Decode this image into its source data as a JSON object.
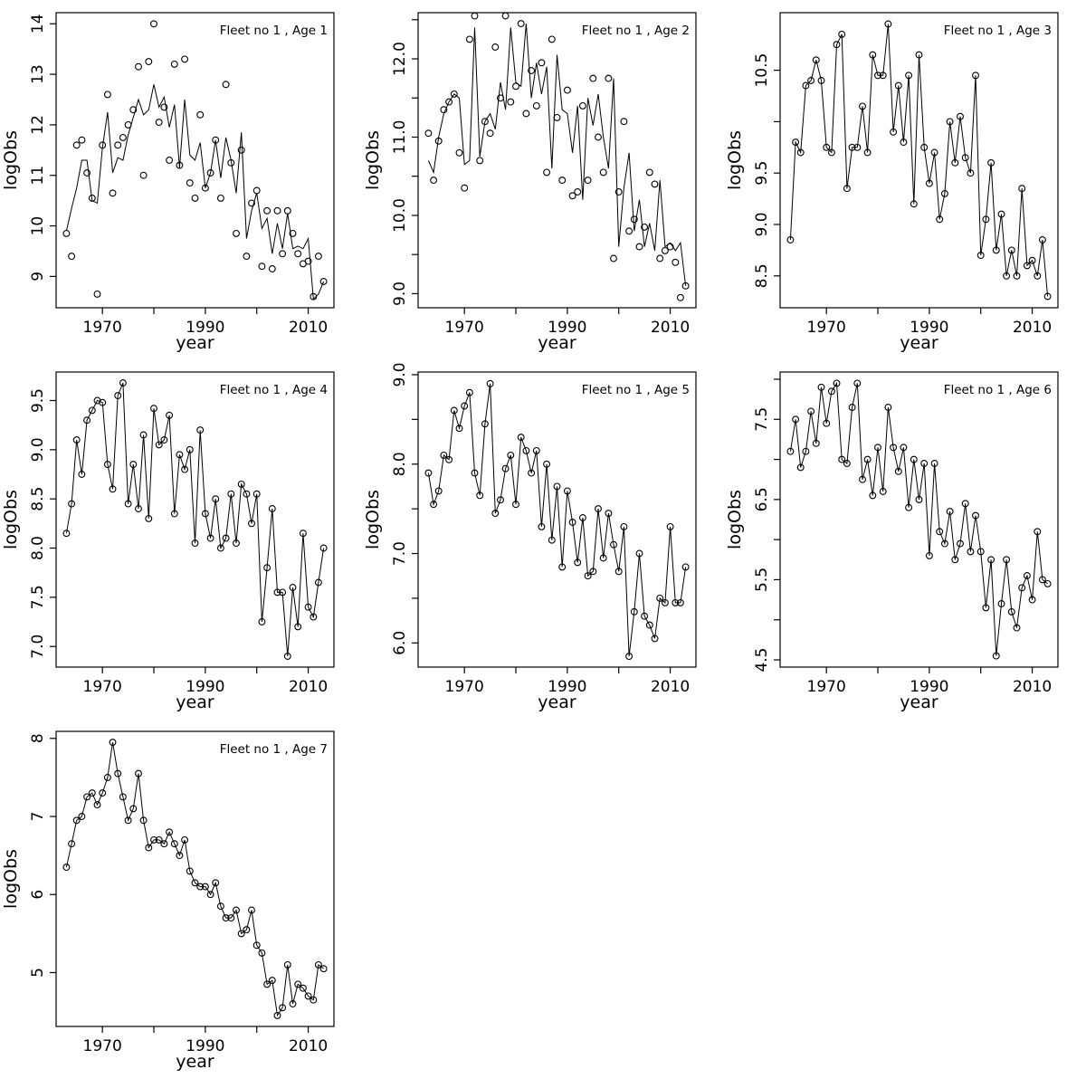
{
  "page": {
    "background": "#ffffff",
    "foreground": "#000000"
  },
  "chart_data": [
    {
      "type": "line",
      "title": "Fleet no 1 , Age 1",
      "xlabel": "year",
      "ylabel": "logObs",
      "marker": "open-circle",
      "grid": false,
      "legend": null,
      "x_start": 1963,
      "x_end": 2013,
      "xlim": [
        1961,
        2015
      ],
      "ylim": [
        8.38,
        14.22
      ],
      "xticks": [
        1970,
        1980,
        1990,
        2000,
        2010
      ],
      "xtick_labels": [
        "1970",
        "",
        "1990",
        "",
        "2010"
      ],
      "yticks": [
        9,
        10,
        11,
        12,
        13,
        14
      ],
      "ytick_labels": [
        "9",
        "10",
        "11",
        "12",
        "13",
        "14"
      ],
      "obs": [
        9.85,
        9.4,
        11.6,
        11.7,
        11.05,
        10.55,
        8.65,
        11.6,
        12.6,
        10.65,
        11.6,
        11.75,
        12.0,
        12.3,
        13.15,
        11.0,
        13.25,
        14.0,
        12.05,
        12.35,
        11.3,
        13.2,
        11.2,
        13.3,
        10.85,
        10.55,
        12.2,
        10.75,
        11.05,
        11.7,
        10.55,
        12.8,
        11.25,
        9.85,
        11.5,
        9.4,
        10.45,
        10.7,
        9.2,
        10.3,
        9.15,
        10.3,
        9.45,
        10.3,
        9.85,
        9.45,
        9.25,
        9.3,
        8.6,
        9.4,
        8.9
      ],
      "fit": [
        9.9,
        10.35,
        10.75,
        11.3,
        11.3,
        10.5,
        10.45,
        11.55,
        12.25,
        11.05,
        11.35,
        11.3,
        11.8,
        12.15,
        12.5,
        12.2,
        12.3,
        12.8,
        12.35,
        12.55,
        11.95,
        12.4,
        11.15,
        12.5,
        11.4,
        11.3,
        11.65,
        10.75,
        11.05,
        11.7,
        10.95,
        11.75,
        11.3,
        10.65,
        11.85,
        9.75,
        10.3,
        10.65,
        9.95,
        10.15,
        9.45,
        10.05,
        9.55,
        10.25,
        9.55,
        9.6,
        9.55,
        9.75,
        8.55,
        8.65,
        8.9
      ]
    },
    {
      "type": "line",
      "title": "Fleet no 1 , Age 2",
      "xlabel": "year",
      "ylabel": "logObs",
      "marker": "open-circle",
      "grid": false,
      "legend": null,
      "x_start": 1963,
      "x_end": 2013,
      "xlim": [
        1961,
        2015
      ],
      "ylim": [
        8.82,
        12.59
      ],
      "xticks": [
        1970,
        1980,
        1990,
        2000,
        2010
      ],
      "xtick_labels": [
        "1970",
        "",
        "1990",
        "",
        "2010"
      ],
      "yticks": [
        9,
        9.5,
        10,
        10.5,
        11,
        11.5,
        12,
        12.5
      ],
      "ytick_labels": [
        "9.0",
        "",
        "10.0",
        "",
        "11.0",
        "",
        "12.0",
        ""
      ],
      "obs": [
        11.05,
        10.45,
        10.95,
        11.35,
        11.45,
        11.55,
        10.8,
        10.35,
        12.25,
        12.55,
        10.7,
        11.2,
        11.05,
        12.15,
        11.5,
        12.55,
        11.45,
        11.65,
        12.45,
        11.3,
        11.85,
        11.4,
        11.95,
        10.55,
        12.25,
        11.25,
        10.45,
        11.6,
        10.25,
        10.3,
        11.4,
        10.45,
        11.75,
        11.0,
        10.55,
        11.75,
        9.45,
        10.3,
        11.2,
        9.8,
        9.95,
        9.6,
        9.85,
        10.55,
        10.4,
        9.45,
        9.55,
        9.6,
        9.4,
        8.95,
        9.1
      ],
      "fit": [
        10.7,
        10.55,
        11.0,
        11.3,
        11.45,
        11.55,
        11.5,
        10.65,
        10.7,
        12.4,
        10.75,
        11.2,
        11.3,
        11.1,
        11.7,
        11.35,
        12.4,
        11.7,
        11.65,
        12.45,
        11.5,
        11.95,
        11.55,
        11.9,
        10.6,
        12.05,
        11.35,
        11.3,
        10.8,
        11.4,
        10.2,
        11.5,
        11.15,
        11.55,
        11.0,
        10.6,
        11.75,
        9.6,
        10.35,
        10.8,
        9.8,
        10.2,
        9.6,
        9.9,
        9.55,
        10.45,
        9.6,
        9.65,
        9.55,
        9.65,
        9.1
      ]
    },
    {
      "type": "line",
      "title": "Fleet no 1 , Age 3",
      "xlabel": "year",
      "ylabel": "logObs",
      "marker": "open-circle",
      "grid": false,
      "legend": null,
      "x_start": 1963,
      "x_end": 2013,
      "xlim": [
        1961,
        2015
      ],
      "ylim": [
        8.19,
        11.06
      ],
      "xticks": [
        1970,
        1980,
        1990,
        2000,
        2010
      ],
      "xtick_labels": [
        "1970",
        "",
        "1990",
        "",
        "2010"
      ],
      "yticks": [
        8.5,
        9,
        9.5,
        10,
        10.5
      ],
      "ytick_labels": [
        "8.5",
        "9.0",
        "9.5",
        "",
        "10.5"
      ],
      "obs": [
        8.85,
        9.8,
        9.7,
        10.35,
        10.4,
        10.6,
        10.4,
        9.75,
        9.7,
        10.75,
        10.85,
        9.35,
        9.75,
        9.75,
        10.15,
        9.7,
        10.65,
        10.45,
        10.45,
        10.95,
        9.9,
        10.35,
        9.8,
        10.45,
        9.2,
        10.65,
        9.75,
        9.4,
        9.7,
        9.05,
        9.3,
        10.0,
        9.6,
        10.05,
        9.65,
        9.5,
        10.45,
        8.7,
        9.05,
        9.6,
        8.75,
        9.1,
        8.5,
        8.75,
        8.5,
        9.35,
        8.6,
        8.65,
        8.5,
        8.85,
        8.3
      ]
    },
    {
      "type": "line",
      "title": "Fleet no 1 , Age 4",
      "xlabel": "year",
      "ylabel": "logObs",
      "marker": "open-circle",
      "grid": false,
      "legend": null,
      "x_start": 1963,
      "x_end": 2013,
      "xlim": [
        1961,
        2015
      ],
      "ylim": [
        6.79,
        9.79
      ],
      "xticks": [
        1970,
        1980,
        1990,
        2000,
        2010
      ],
      "xtick_labels": [
        "1970",
        "",
        "1990",
        "",
        "2010"
      ],
      "yticks": [
        7,
        7.5,
        8,
        8.5,
        9,
        9.5
      ],
      "ytick_labels": [
        "7.0",
        "7.5",
        "8.0",
        "8.5",
        "9.0",
        "9.5"
      ],
      "obs": [
        8.15,
        8.45,
        9.1,
        8.75,
        9.3,
        9.4,
        9.5,
        9.48,
        8.85,
        8.6,
        9.55,
        9.68,
        8.45,
        8.85,
        8.4,
        9.15,
        8.3,
        9.42,
        9.05,
        9.1,
        9.35,
        8.35,
        8.95,
        8.8,
        9.0,
        8.05,
        9.2,
        8.35,
        8.1,
        8.5,
        8.0,
        8.1,
        8.55,
        8.05,
        8.65,
        8.55,
        8.25,
        8.55,
        7.25,
        7.8,
        8.4,
        7.55,
        7.55,
        6.9,
        7.6,
        7.2,
        8.15,
        7.4,
        7.3,
        7.65,
        8.0
      ]
    },
    {
      "type": "line",
      "title": "Fleet no 1 , Age 5",
      "xlabel": "year",
      "ylabel": "logObs",
      "marker": "open-circle",
      "grid": false,
      "legend": null,
      "x_start": 1963,
      "x_end": 2013,
      "xlim": [
        1961,
        2015
      ],
      "ylim": [
        5.73,
        9.03
      ],
      "xticks": [
        1970,
        1980,
        1990,
        2000,
        2010
      ],
      "xtick_labels": [
        "1970",
        "",
        "1990",
        "",
        "2010"
      ],
      "yticks": [
        6,
        6.5,
        7,
        7.5,
        8,
        8.5,
        9
      ],
      "ytick_labels": [
        "6.0",
        "",
        "7.0",
        "",
        "8.0",
        "",
        "9.0"
      ],
      "obs": [
        7.9,
        7.55,
        7.7,
        8.1,
        8.05,
        8.6,
        8.4,
        8.65,
        8.8,
        7.9,
        7.65,
        8.45,
        8.9,
        7.45,
        7.6,
        7.95,
        8.1,
        7.55,
        8.3,
        8.15,
        7.9,
        8.15,
        7.3,
        8.0,
        7.15,
        7.75,
        6.85,
        7.7,
        7.35,
        6.9,
        7.4,
        6.75,
        6.8,
        7.5,
        6.95,
        7.45,
        7.1,
        6.8,
        7.3,
        5.85,
        6.35,
        7.0,
        6.3,
        6.2,
        6.05,
        6.5,
        6.45,
        7.3,
        6.45,
        6.45,
        6.85
      ]
    },
    {
      "type": "line",
      "title": "Fleet no 1 , Age 6",
      "xlabel": "year",
      "ylabel": "logObs",
      "marker": "open-circle",
      "grid": false,
      "legend": null,
      "x_start": 1963,
      "x_end": 2013,
      "xlim": [
        1961,
        2015
      ],
      "ylim": [
        4.41,
        8.09
      ],
      "xticks": [
        1970,
        1980,
        1990,
        2000,
        2010
      ],
      "xtick_labels": [
        "1970",
        "",
        "1990",
        "",
        "2010"
      ],
      "yticks": [
        4.5,
        5,
        5.5,
        6,
        6.5,
        7,
        7.5,
        8
      ],
      "ytick_labels": [
        "4.5",
        "",
        "5.5",
        "",
        "6.5",
        "",
        "7.5",
        ""
      ],
      "obs": [
        7.1,
        7.5,
        6.9,
        7.1,
        7.6,
        7.2,
        7.9,
        7.45,
        7.85,
        7.95,
        7.0,
        6.95,
        7.65,
        7.95,
        6.75,
        7.0,
        6.55,
        7.15,
        6.6,
        7.65,
        7.15,
        6.85,
        7.15,
        6.4,
        7.0,
        6.5,
        6.95,
        5.8,
        6.95,
        6.1,
        5.95,
        6.35,
        5.75,
        5.95,
        6.45,
        5.85,
        6.3,
        5.85,
        5.15,
        5.75,
        4.55,
        5.2,
        5.75,
        5.1,
        4.9,
        5.4,
        5.55,
        5.25,
        6.1,
        5.5,
        5.45
      ]
    },
    {
      "type": "line",
      "title": "Fleet no 1 , Age 7",
      "xlabel": "year",
      "ylabel": "logObs",
      "marker": "open-circle",
      "grid": false,
      "legend": null,
      "x_start": 1963,
      "x_end": 2013,
      "xlim": [
        1961,
        2015
      ],
      "ylim": [
        4.31,
        8.09
      ],
      "xticks": [
        1970,
        1980,
        1990,
        2000,
        2010
      ],
      "xtick_labels": [
        "1970",
        "",
        "1990",
        "",
        "2010"
      ],
      "yticks": [
        5,
        6,
        7,
        8
      ],
      "ytick_labels": [
        "5",
        "6",
        "7",
        "8"
      ],
      "obs": [
        6.35,
        6.65,
        6.95,
        7.0,
        7.25,
        7.3,
        7.15,
        7.3,
        7.5,
        7.95,
        7.55,
        7.25,
        6.95,
        7.1,
        7.55,
        6.95,
        6.6,
        6.7,
        6.7,
        6.65,
        6.8,
        6.65,
        6.5,
        6.7,
        6.3,
        6.15,
        6.1,
        6.1,
        6.0,
        6.15,
        5.85,
        5.7,
        5.7,
        5.8,
        5.5,
        5.55,
        5.8,
        5.35,
        5.25,
        4.85,
        4.9,
        4.45,
        4.55,
        5.1,
        4.6,
        4.85,
        4.8,
        4.7,
        4.65,
        5.1,
        5.05
      ]
    }
  ]
}
